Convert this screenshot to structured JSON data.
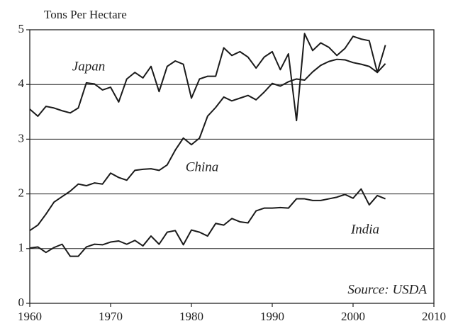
{
  "chart_data": {
    "type": "line",
    "y_axis_label": "Tons Per Hectare",
    "annotation": "Source: USDA",
    "x": [
      1960,
      1961,
      1962,
      1963,
      1964,
      1965,
      1966,
      1967,
      1968,
      1969,
      1970,
      1971,
      1972,
      1973,
      1974,
      1975,
      1976,
      1977,
      1978,
      1979,
      1980,
      1981,
      1982,
      1983,
      1984,
      1985,
      1986,
      1987,
      1988,
      1989,
      1990,
      1991,
      1992,
      1993,
      1994,
      1995,
      1996,
      1997,
      1998,
      1999,
      2000,
      2001,
      2002,
      2003,
      2004
    ],
    "series": [
      {
        "name": "Japan",
        "color": "#1a1a1a",
        "values": [
          3.55,
          3.42,
          3.6,
          3.57,
          3.52,
          3.48,
          3.57,
          4.03,
          4.01,
          3.9,
          3.95,
          3.68,
          4.1,
          4.22,
          4.12,
          4.33,
          3.87,
          4.33,
          4.43,
          4.37,
          3.75,
          4.1,
          4.15,
          4.15,
          4.67,
          4.53,
          4.6,
          4.5,
          4.3,
          4.5,
          4.6,
          4.27,
          4.56,
          3.34,
          4.93,
          4.62,
          4.76,
          4.68,
          4.53,
          4.66,
          4.88,
          4.83,
          4.8,
          4.22,
          4.72
        ]
      },
      {
        "name": "China",
        "color": "#1a1a1a",
        "values": [
          1.33,
          1.43,
          1.63,
          1.85,
          1.95,
          2.05,
          2.18,
          2.15,
          2.2,
          2.18,
          2.38,
          2.3,
          2.25,
          2.43,
          2.45,
          2.46,
          2.43,
          2.53,
          2.8,
          3.02,
          2.9,
          3.02,
          3.42,
          3.58,
          3.77,
          3.7,
          3.75,
          3.8,
          3.72,
          3.86,
          4.02,
          3.97,
          4.05,
          4.1,
          4.08,
          4.23,
          4.35,
          4.42,
          4.46,
          4.45,
          4.4,
          4.37,
          4.33,
          4.22,
          4.38
        ]
      },
      {
        "name": "India",
        "color": "#1a1a1a",
        "values": [
          1.01,
          1.03,
          0.93,
          1.02,
          1.08,
          0.86,
          0.86,
          1.03,
          1.08,
          1.07,
          1.12,
          1.14,
          1.08,
          1.15,
          1.05,
          1.23,
          1.08,
          1.3,
          1.33,
          1.07,
          1.34,
          1.3,
          1.23,
          1.46,
          1.43,
          1.55,
          1.49,
          1.47,
          1.69,
          1.74,
          1.74,
          1.75,
          1.74,
          1.91,
          1.91,
          1.88,
          1.88,
          1.91,
          1.94,
          1.99,
          1.92,
          2.09,
          1.8,
          1.97,
          1.91
        ]
      }
    ],
    "xlim": [
      1960,
      2010
    ],
    "xticks": [
      1960,
      1970,
      1980,
      1990,
      2000,
      2010
    ],
    "ylim": [
      0,
      5
    ],
    "yticks": [
      0,
      1,
      2,
      3,
      4,
      5
    ],
    "grid": true
  }
}
